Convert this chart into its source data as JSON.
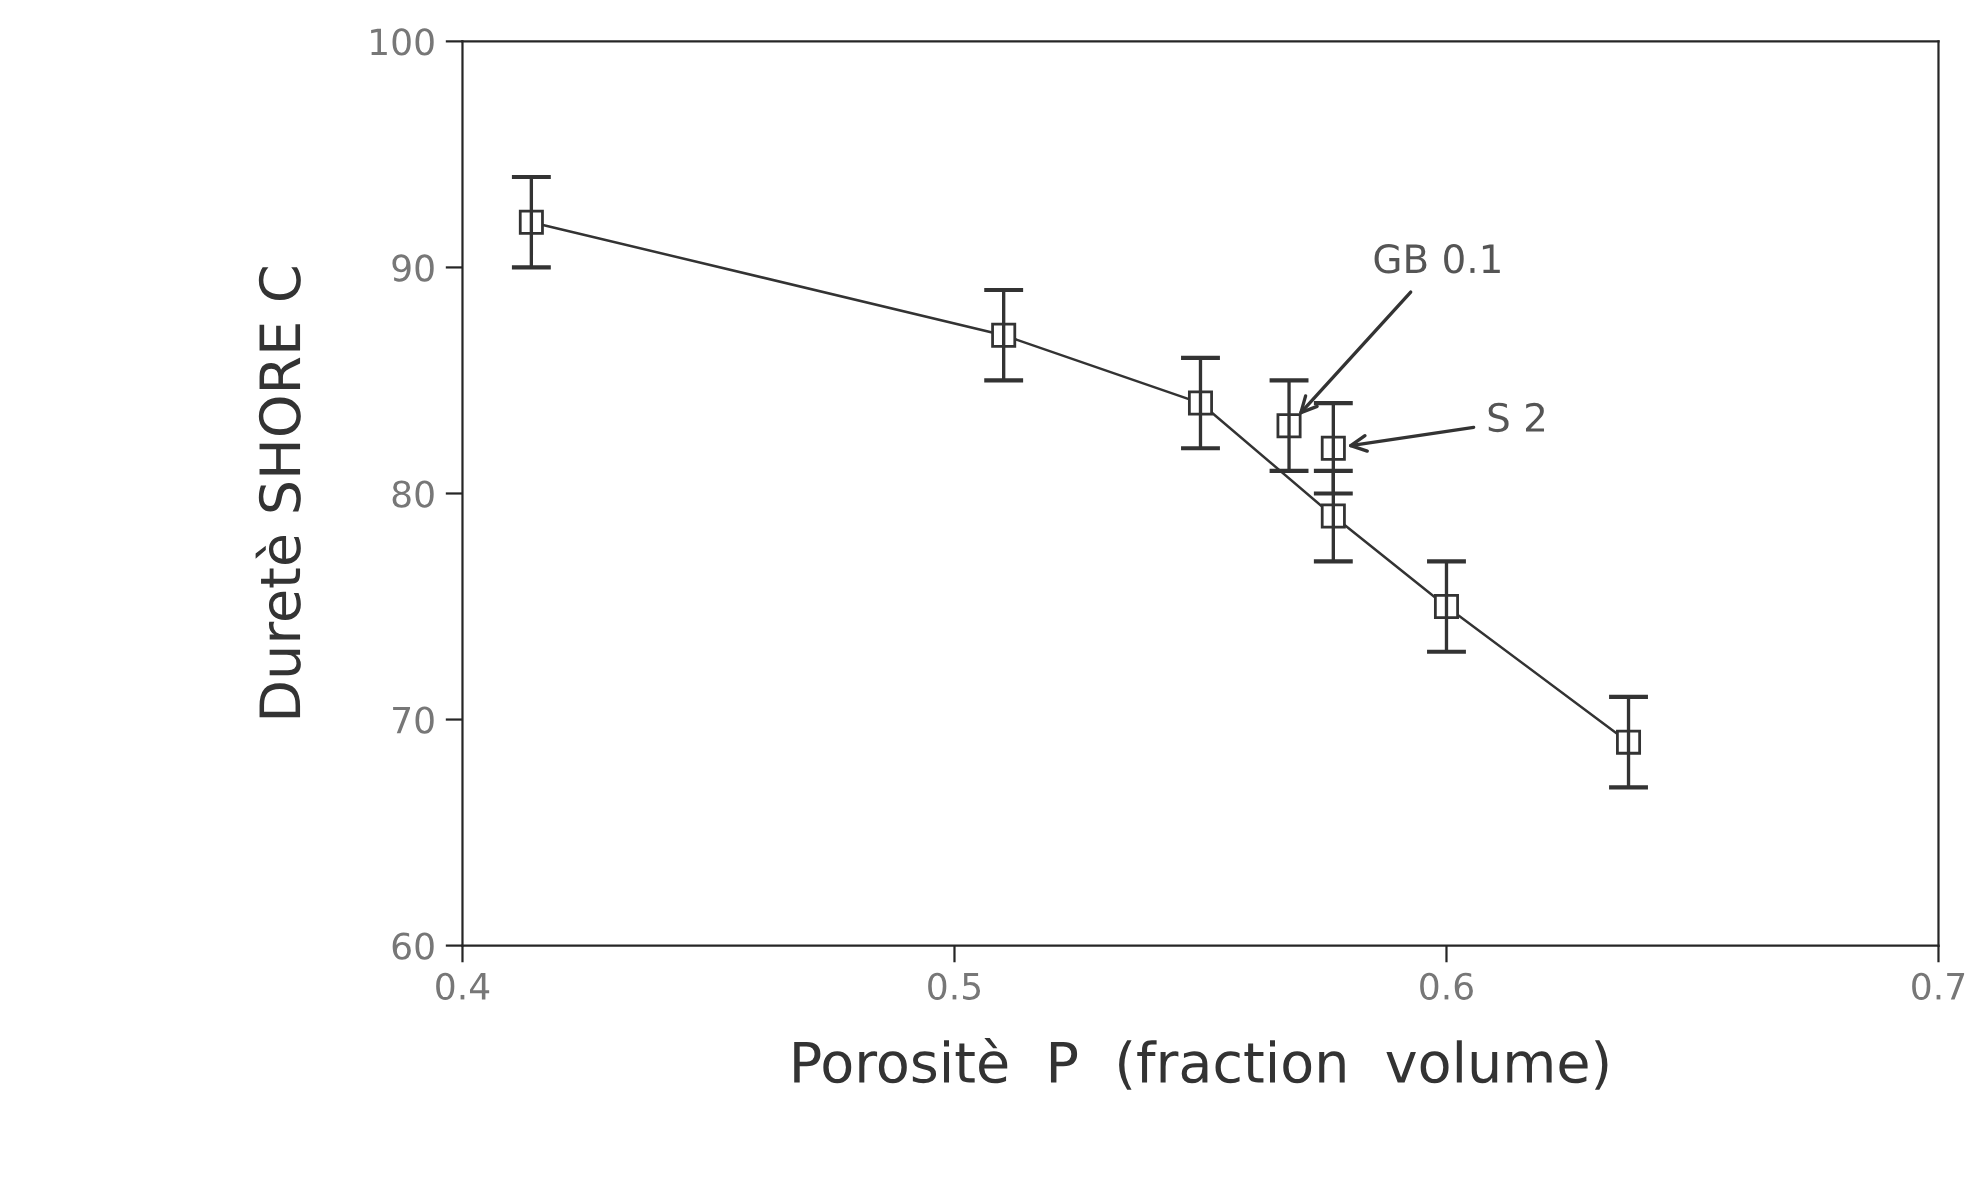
{
  "chart_data": {
    "type": "line",
    "xlabel": "Porositè  P  (fraction  volume)",
    "ylabel": "Duretè SHORE C",
    "xlim": [
      0.4,
      0.7
    ],
    "xticks": [
      0.4,
      0.5,
      0.6,
      0.7
    ],
    "ylim": [
      60,
      100
    ],
    "yticks": [
      60,
      70,
      80,
      90,
      100
    ],
    "grid": false,
    "marker": "square",
    "line_style": "solid",
    "series": [
      {
        "color": "#333333",
        "x": [
          0.414,
          0.51,
          0.55,
          0.577,
          0.6,
          0.637
        ],
        "values": [
          92,
          87,
          84,
          79,
          75,
          69
        ],
        "errors": [
          2,
          2,
          2,
          2,
          2,
          2
        ]
      },
      {
        "type": "scatter",
        "color": "#333333",
        "x": [
          0.568
        ],
        "values": [
          83
        ],
        "errors": [
          2
        ]
      },
      {
        "type": "scatter",
        "color": "#333333",
        "x": [
          0.577
        ],
        "values": [
          82
        ],
        "errors": [
          2
        ]
      }
    ],
    "annotations": [
      {
        "text": "GB 0.1",
        "x": 0.568,
        "y": 83
      },
      {
        "text": "S 2",
        "x": 0.577,
        "y": 82
      }
    ]
  }
}
